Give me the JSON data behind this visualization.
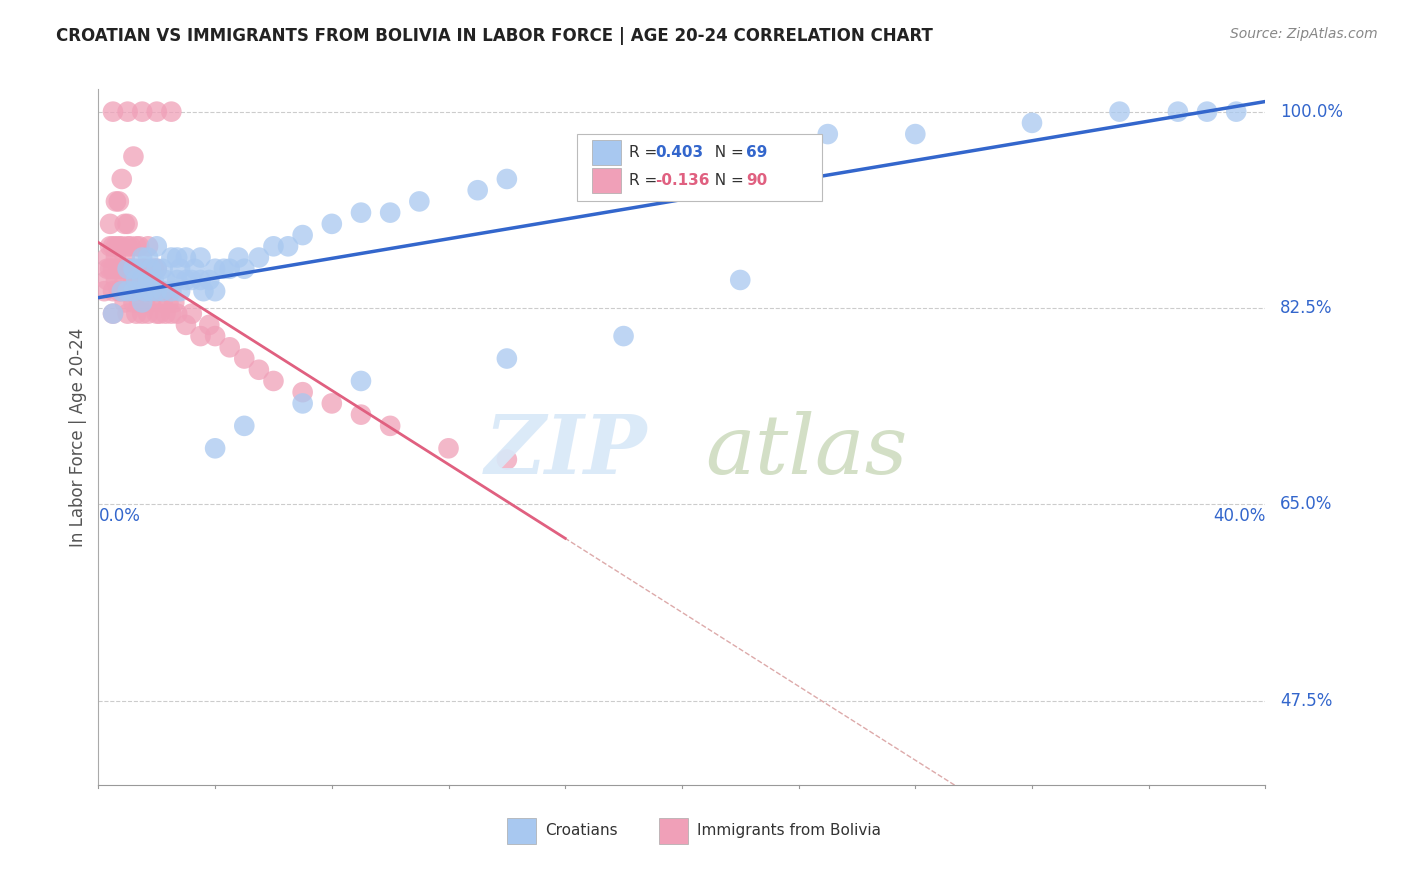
{
  "title": "CROATIAN VS IMMIGRANTS FROM BOLIVIA IN LABOR FORCE | AGE 20-24 CORRELATION CHART",
  "source": "Source: ZipAtlas.com",
  "xlabel_bottom_left": "0.0%",
  "xlabel_bottom_right": "40.0%",
  "ylabel": "In Labor Force | Age 20-24",
  "yticks": [
    "100.0%",
    "82.5%",
    "65.0%",
    "47.5%"
  ],
  "ytick_values": [
    1.0,
    0.825,
    0.65,
    0.475
  ],
  "xmin": 0.0,
  "xmax": 0.4,
  "ymin": 0.4,
  "ymax": 1.02,
  "legend_R_blue": "0.403",
  "legend_N_blue": "69",
  "legend_R_pink": "-0.136",
  "legend_N_pink": "90",
  "blue_color": "#A8C8F0",
  "pink_color": "#F0A0B8",
  "blue_line_color": "#3366CC",
  "pink_line_color": "#E06080",
  "ref_line_color": "#DDAAAA",
  "grid_color": "#CCCCCC",
  "blue_scatter_x": [
    0.005,
    0.008,
    0.01,
    0.01,
    0.012,
    0.012,
    0.013,
    0.015,
    0.015,
    0.015,
    0.016,
    0.017,
    0.017,
    0.018,
    0.018,
    0.019,
    0.02,
    0.02,
    0.02,
    0.022,
    0.022,
    0.023,
    0.025,
    0.025,
    0.027,
    0.027,
    0.028,
    0.028,
    0.03,
    0.03,
    0.032,
    0.033,
    0.035,
    0.035,
    0.036,
    0.038,
    0.04,
    0.04,
    0.043,
    0.045,
    0.048,
    0.05,
    0.055,
    0.06,
    0.065,
    0.07,
    0.08,
    0.09,
    0.1,
    0.11,
    0.13,
    0.14,
    0.17,
    0.19,
    0.21,
    0.25,
    0.28,
    0.32,
    0.35,
    0.37,
    0.38,
    0.39,
    0.14,
    0.18,
    0.22,
    0.09,
    0.07,
    0.05,
    0.04
  ],
  "blue_scatter_y": [
    0.82,
    0.84,
    0.84,
    0.86,
    0.84,
    0.86,
    0.85,
    0.83,
    0.85,
    0.87,
    0.84,
    0.85,
    0.87,
    0.84,
    0.86,
    0.85,
    0.84,
    0.86,
    0.88,
    0.84,
    0.86,
    0.85,
    0.84,
    0.87,
    0.85,
    0.87,
    0.84,
    0.86,
    0.85,
    0.87,
    0.85,
    0.86,
    0.85,
    0.87,
    0.84,
    0.85,
    0.84,
    0.86,
    0.86,
    0.86,
    0.87,
    0.86,
    0.87,
    0.88,
    0.88,
    0.89,
    0.9,
    0.91,
    0.91,
    0.92,
    0.93,
    0.94,
    0.95,
    0.96,
    0.97,
    0.98,
    0.98,
    0.99,
    1.0,
    1.0,
    1.0,
    1.0,
    0.78,
    0.8,
    0.85,
    0.76,
    0.74,
    0.72,
    0.7
  ],
  "pink_scatter_x": [
    0.002,
    0.003,
    0.003,
    0.004,
    0.004,
    0.005,
    0.005,
    0.005,
    0.005,
    0.005,
    0.006,
    0.006,
    0.007,
    0.007,
    0.007,
    0.008,
    0.008,
    0.008,
    0.009,
    0.009,
    0.009,
    0.01,
    0.01,
    0.01,
    0.01,
    0.01,
    0.01,
    0.011,
    0.011,
    0.012,
    0.012,
    0.013,
    0.013,
    0.014,
    0.014,
    0.015,
    0.015,
    0.015,
    0.016,
    0.016,
    0.017,
    0.017,
    0.018,
    0.018,
    0.02,
    0.02,
    0.02,
    0.021,
    0.022,
    0.023,
    0.024,
    0.025,
    0.026,
    0.027,
    0.03,
    0.032,
    0.035,
    0.038,
    0.04,
    0.045,
    0.05,
    0.055,
    0.06,
    0.07,
    0.08,
    0.09,
    0.1,
    0.12,
    0.14,
    0.015,
    0.02,
    0.025,
    0.012,
    0.008,
    0.006,
    0.009,
    0.011,
    0.013,
    0.016,
    0.007,
    0.004,
    0.019,
    0.022,
    0.017,
    0.014,
    0.006,
    0.008,
    0.01,
    0.013,
    0.003
  ],
  "pink_scatter_y": [
    0.84,
    0.85,
    0.87,
    0.86,
    0.88,
    0.82,
    0.84,
    0.86,
    0.88,
    1.0,
    0.85,
    0.87,
    0.84,
    0.86,
    0.88,
    0.84,
    0.86,
    0.88,
    0.83,
    0.85,
    0.87,
    0.82,
    0.84,
    0.86,
    0.88,
    0.9,
    1.0,
    0.84,
    0.86,
    0.83,
    0.85,
    0.84,
    0.86,
    0.83,
    0.85,
    0.82,
    0.84,
    0.86,
    0.83,
    0.85,
    0.82,
    0.84,
    0.83,
    0.85,
    0.82,
    0.84,
    0.86,
    0.82,
    0.83,
    0.82,
    0.83,
    0.82,
    0.83,
    0.82,
    0.81,
    0.82,
    0.8,
    0.81,
    0.8,
    0.79,
    0.78,
    0.77,
    0.76,
    0.75,
    0.74,
    0.73,
    0.72,
    0.7,
    0.69,
    1.0,
    1.0,
    1.0,
    0.96,
    0.94,
    0.92,
    0.9,
    0.88,
    0.88,
    0.86,
    0.92,
    0.9,
    0.86,
    0.84,
    0.88,
    0.88,
    0.88,
    0.86,
    0.84,
    0.82,
    0.86
  ],
  "watermark_zip": "ZIP",
  "watermark_atlas": "atlas"
}
